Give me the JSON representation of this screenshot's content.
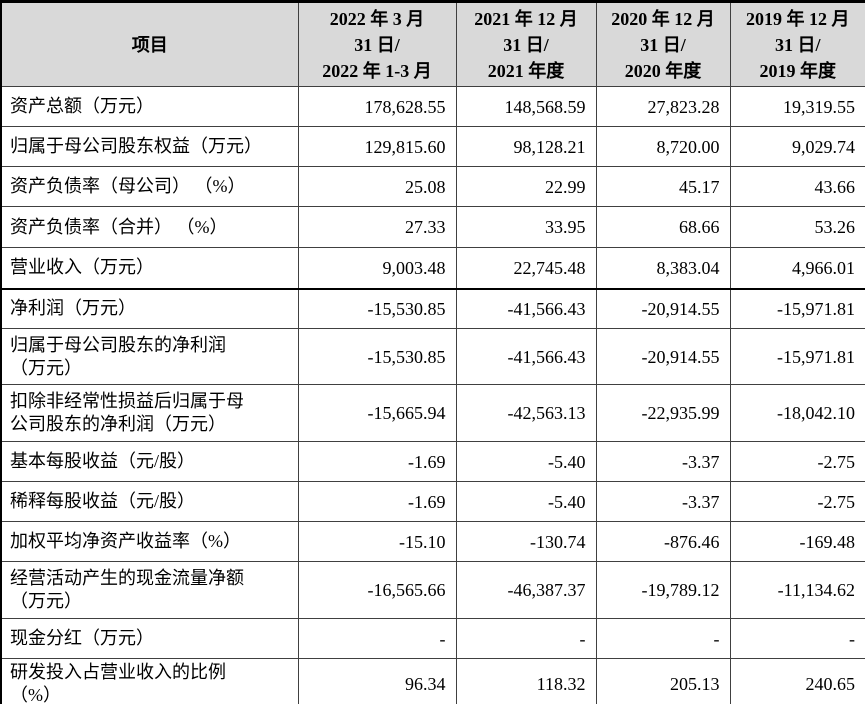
{
  "colors": {
    "header_bg": "#d9d9d9",
    "grid_line": "#404040",
    "outer_border": "#000000",
    "text": "#000000"
  },
  "table": {
    "header": {
      "item": "项目",
      "p2022": "2022 年 3 月\n31 日/\n2022 年 1-3 月",
      "p2021": "2021 年 12 月\n31 日/\n2021 年度",
      "p2020": "2020 年 12 月\n31 日/\n2020 年度",
      "p2019": "2019 年 12 月\n31 日/\n2019 年度"
    },
    "rows": [
      {
        "label": "资产总额（万元）",
        "v": [
          "178,628.55",
          "148,568.59",
          "27,823.28",
          "19,319.55"
        ]
      },
      {
        "label": "归属于母公司股东权益（万元）",
        "v": [
          "129,815.60",
          "98,128.21",
          "8,720.00",
          "9,029.74"
        ]
      },
      {
        "label": "资产负债率（母公司） （%）",
        "v": [
          "25.08",
          "22.99",
          "45.17",
          "43.66"
        ]
      },
      {
        "label": "资产负债率（合并） （%）",
        "v": [
          "27.33",
          "33.95",
          "68.66",
          "53.26"
        ]
      },
      {
        "label": "营业收入（万元）",
        "v": [
          "9,003.48",
          "22,745.48",
          "8,383.04",
          "4,966.01"
        ]
      },
      {
        "label": "净利润（万元）",
        "v": [
          "-15,530.85",
          "-41,566.43",
          "-20,914.55",
          "-15,971.81"
        ]
      },
      {
        "label": "归属于母公司股东的净利润\n（万元）",
        "v": [
          "-15,530.85",
          "-41,566.43",
          "-20,914.55",
          "-15,971.81"
        ]
      },
      {
        "label": "扣除非经常性损益后归属于母\n公司股东的净利润（万元）",
        "v": [
          "-15,665.94",
          "-42,563.13",
          "-22,935.99",
          "-18,042.10"
        ]
      },
      {
        "label": "基本每股收益（元/股）",
        "v": [
          "-1.69",
          "-5.40",
          "-3.37",
          "-2.75"
        ]
      },
      {
        "label": "稀释每股收益（元/股）",
        "v": [
          "-1.69",
          "-5.40",
          "-3.37",
          "-2.75"
        ]
      },
      {
        "label": "加权平均净资产收益率（%）",
        "v": [
          "-15.10",
          "-130.74",
          "-876.46",
          "-169.48"
        ]
      },
      {
        "label": "经营活动产生的现金流量净额\n（万元）",
        "v": [
          "-16,565.66",
          "-46,387.37",
          "-19,789.12",
          "-11,134.62"
        ]
      },
      {
        "label": "现金分红（万元）",
        "v": [
          "-",
          "-",
          "-",
          "-"
        ]
      },
      {
        "label": "研发投入占营业收入的比例\n（%）",
        "v": [
          "96.34",
          "118.32",
          "205.13",
          "240.65"
        ]
      }
    ]
  }
}
